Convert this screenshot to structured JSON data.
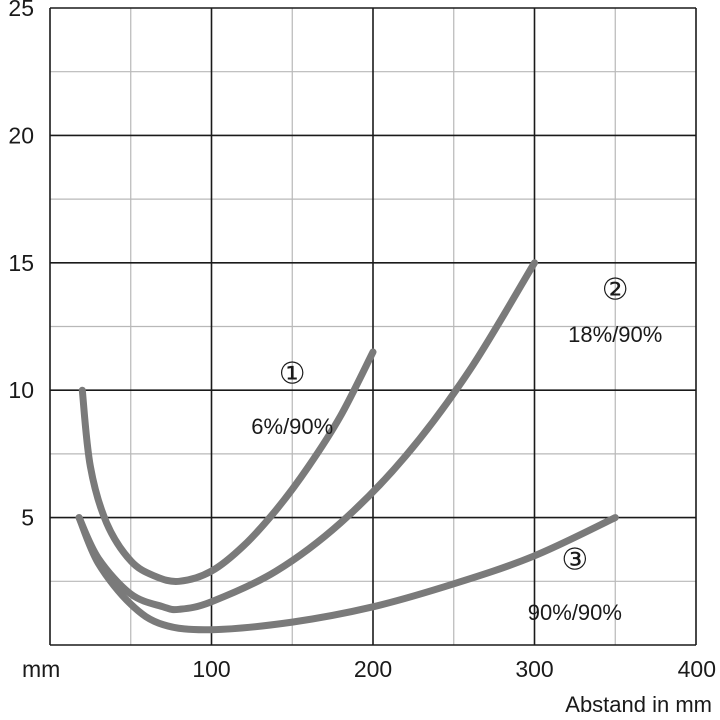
{
  "chart_data": {
    "type": "line",
    "title": "",
    "xlabel": "Abstand in mm",
    "x_unit_label": "mm",
    "ylabel": "",
    "xlim": [
      0,
      400
    ],
    "ylim": [
      0,
      25
    ],
    "x_ticks": [
      "100",
      "200",
      "300",
      "400"
    ],
    "y_ticks": [
      "5",
      "10",
      "15",
      "20",
      "25"
    ],
    "grid": true,
    "series": [
      {
        "name": "6%/90%",
        "marker": "①",
        "x": [
          20,
          25,
          35,
          50,
          65,
          80,
          100,
          120,
          140,
          160,
          180,
          200
        ],
        "y": [
          10.0,
          7.0,
          4.8,
          3.3,
          2.7,
          2.5,
          2.9,
          3.9,
          5.3,
          7.0,
          9.0,
          11.5
        ]
      },
      {
        "name": "18%/90%",
        "marker": "②",
        "x": [
          18,
          30,
          50,
          70,
          80,
          100,
          140,
          180,
          220,
          260,
          300
        ],
        "y": [
          5.0,
          3.4,
          2.0,
          1.5,
          1.4,
          1.7,
          2.9,
          4.8,
          7.4,
          10.8,
          15.0
        ]
      },
      {
        "name": "90%/90%",
        "marker": "③",
        "x": [
          18,
          30,
          50,
          70,
          100,
          150,
          200,
          250,
          300,
          350
        ],
        "y": [
          5.0,
          3.2,
          1.6,
          0.8,
          0.6,
          0.9,
          1.5,
          2.4,
          3.5,
          5.0
        ]
      }
    ],
    "annotations": [
      {
        "series": 0,
        "marker": "①",
        "label": "6%/90%",
        "marker_at": [
          150,
          10.7
        ],
        "label_at": [
          150,
          8.6
        ]
      },
      {
        "series": 1,
        "marker": "②",
        "label": "18%/90%",
        "marker_at": [
          350,
          14.0
        ],
        "label_at": [
          350,
          12.2
        ]
      },
      {
        "series": 2,
        "marker": "③",
        "label": "90%/90%",
        "marker_at": [
          325,
          3.4
        ],
        "label_at": [
          325,
          1.3
        ]
      }
    ]
  },
  "colors": {
    "curve": "#7a7a7a",
    "grid_major": "#1a1a1a",
    "grid_minor": "#b8b8b8",
    "text": "#1a1a1a"
  }
}
